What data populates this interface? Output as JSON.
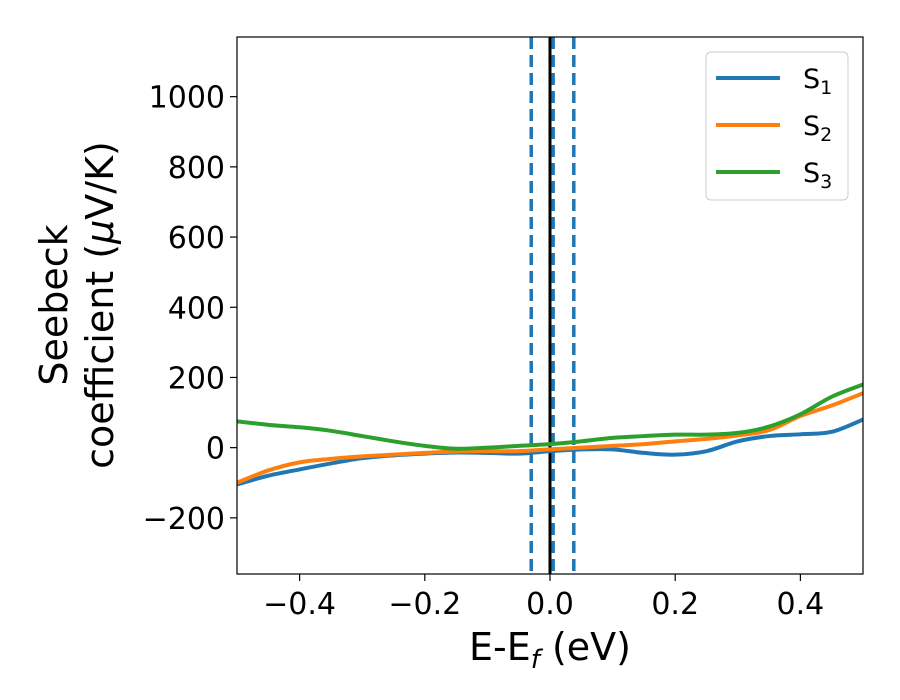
{
  "chart_data": {
    "type": "line",
    "xlabel": "E-E",
    "xlabel_sub": "f",
    "xlabel_unit": " (eV)",
    "ylabel_line1": "Seebeck",
    "ylabel_line2": "coefficient  (",
    "ylabel_mu": "μ",
    "ylabel_unit": "V/K)",
    "xlim": [
      -0.5,
      0.5
    ],
    "ylim": [
      -360,
      1170
    ],
    "x_ticks": [
      -0.4,
      -0.2,
      0.0,
      0.2,
      0.4
    ],
    "x_tick_labels": [
      "−0.4",
      "−0.2",
      "0.0",
      "0.2",
      "0.4"
    ],
    "y_ticks": [
      -200,
      0,
      200,
      400,
      600,
      800,
      1000
    ],
    "y_tick_labels": [
      "−200",
      "0",
      "200",
      "400",
      "600",
      "800",
      "1000"
    ],
    "grid": false,
    "legend_position": "top-right",
    "vertical_lines": [
      {
        "x": -0.03,
        "style": "dashed",
        "color": "#1f77b4"
      },
      {
        "x": 0.0,
        "style": "solid",
        "color": "#000000"
      },
      {
        "x": 0.005,
        "style": "dashed",
        "color": "#1f77b4"
      },
      {
        "x": 0.038,
        "style": "dashed",
        "color": "#1f77b4"
      }
    ],
    "x": [
      -0.5,
      -0.45,
      -0.4,
      -0.35,
      -0.3,
      -0.25,
      -0.2,
      -0.15,
      -0.1,
      -0.05,
      0.0,
      0.05,
      0.1,
      0.15,
      0.2,
      0.25,
      0.3,
      0.35,
      0.4,
      0.45,
      0.5
    ],
    "series": [
      {
        "name": "S",
        "sub": "1",
        "color": "#1f77b4",
        "values": [
          -105,
          -80,
          -62,
          -45,
          -30,
          -22,
          -17,
          -14,
          -15,
          -17,
          -10,
          -5,
          -5,
          -15,
          -20,
          -10,
          18,
          33,
          38,
          45,
          80
        ]
      },
      {
        "name": "S",
        "sub": "2",
        "color": "#ff7f0e",
        "values": [
          -100,
          -65,
          -42,
          -32,
          -25,
          -20,
          -15,
          -11,
          -10,
          -10,
          -5,
          0,
          5,
          10,
          18,
          25,
          35,
          50,
          90,
          120,
          155
        ]
      },
      {
        "name": "S",
        "sub": "3",
        "color": "#2ca02c",
        "values": [
          75,
          65,
          58,
          48,
          33,
          18,
          5,
          -3,
          0,
          5,
          10,
          18,
          28,
          33,
          37,
          37,
          42,
          60,
          95,
          145,
          180
        ]
      }
    ]
  }
}
